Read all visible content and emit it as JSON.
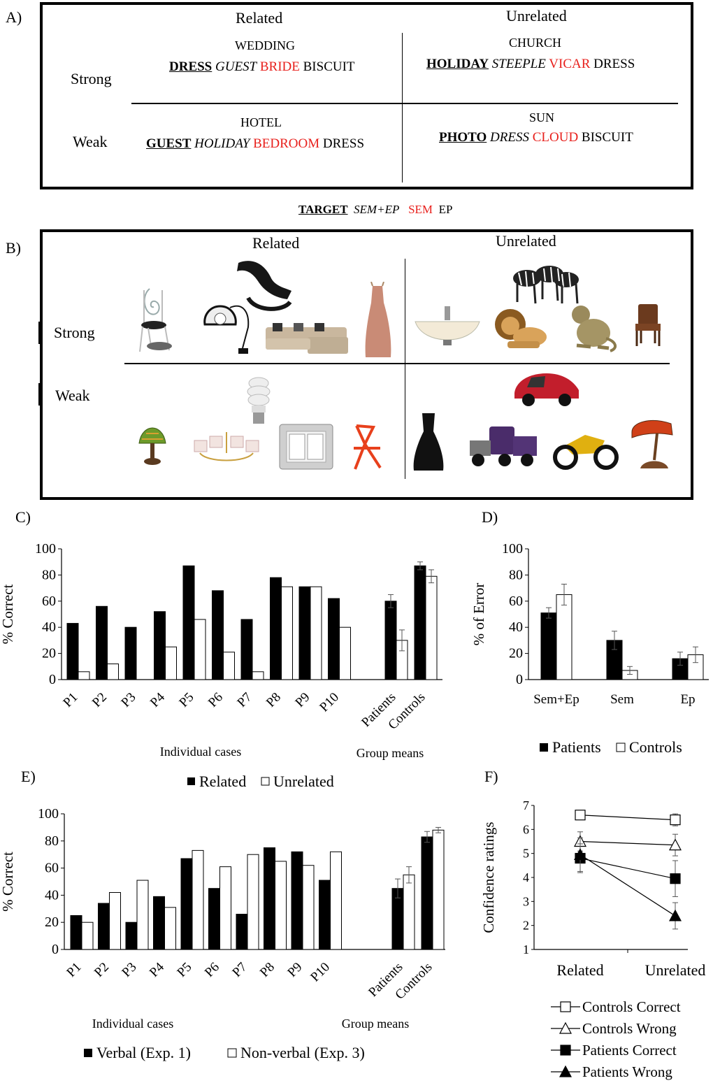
{
  "panel_a": {
    "letter": "A)",
    "col_related": "Related",
    "col_unrelated": "Unrelated",
    "row_strong": "Strong",
    "row_weak": "Weak",
    "cells": {
      "strong_related": {
        "cue": "WEDDING",
        "target": "DRESS",
        "semep": "GUEST",
        "sem": "BRIDE",
        "ep": "BISCUIT"
      },
      "strong_unrelated": {
        "cue": "CHURCH",
        "target": "HOLIDAY",
        "semep": "STEEPLE",
        "sem": "VICAR",
        "ep": "DRESS"
      },
      "weak_related": {
        "cue": "HOTEL",
        "target": "GUEST",
        "semep": "HOLIDAY",
        "sem": "BEDROOM",
        "ep": "DRESS"
      },
      "weak_unrelated": {
        "cue": "SUN",
        "target": "PHOTO",
        "semep": "DRESS",
        "sem": "CLOUD",
        "ep": "BISCUIT"
      }
    },
    "legend": {
      "target": "TARGET",
      "semep": "SEM+EP",
      "sem": "SEM",
      "ep": "EP"
    },
    "colors": {
      "sem": "#e8201c"
    }
  },
  "panel_b": {
    "letter": "B)",
    "col_related": "Related",
    "col_unrelated": "Unrelated",
    "row_strong": "Strong",
    "row_weak": "Weak",
    "images": {
      "strong_related": [
        "chair-image",
        "desk-lamp-image",
        "lounge-chair-image",
        "sofa-image",
        "dress-image"
      ],
      "strong_unrelated": [
        "ceiling-lamp-image",
        "lion-image",
        "zebras-image",
        "monkey-image",
        "wooden-chair-image"
      ],
      "weak_related": [
        "tiffany-lamp-image",
        "chandelier-image",
        "light-bulb-image",
        "light-switch-image",
        "folding-chair-image"
      ],
      "weak_unrelated": [
        "black-dress-image",
        "truck-image",
        "car-image",
        "motorcycle-image",
        "banker-lamp-image"
      ]
    }
  },
  "chart_data": [
    {
      "panel": "C)",
      "type": "bar",
      "ylabel": "% Correct",
      "ylim": [
        0,
        100
      ],
      "yticks": [
        0,
        20,
        40,
        60,
        80,
        100
      ],
      "categories": [
        "P1",
        "P2",
        "P3",
        "P4",
        "P5",
        "P6",
        "P7",
        "P8",
        "P9",
        "P10",
        "Patients",
        "Controls"
      ],
      "series": [
        {
          "name": "Related",
          "color": "#000000",
          "values": [
            43,
            56,
            40,
            52,
            87,
            68,
            46,
            78,
            71,
            62,
            60,
            87
          ],
          "err": [
            null,
            null,
            null,
            null,
            null,
            null,
            null,
            null,
            null,
            null,
            5,
            3
          ]
        },
        {
          "name": "Unrelated",
          "color": "#ffffff",
          "values": [
            6,
            12,
            0,
            25,
            46,
            21,
            6,
            71,
            71,
            40,
            30,
            79
          ],
          "err": [
            null,
            null,
            null,
            null,
            null,
            null,
            null,
            null,
            null,
            null,
            8,
            5
          ]
        }
      ],
      "group_labels": [
        "Individual cases",
        "Group means"
      ],
      "legend_position": "bottom"
    },
    {
      "panel": "D)",
      "type": "bar",
      "ylabel": "% of Error",
      "ylim": [
        0,
        100
      ],
      "yticks": [
        0,
        20,
        40,
        60,
        80,
        100
      ],
      "categories": [
        "Sem+Ep",
        "Sem",
        "Ep"
      ],
      "series": [
        {
          "name": "Patients",
          "color": "#000000",
          "values": [
            51,
            30,
            16
          ],
          "err": [
            4,
            7,
            5
          ]
        },
        {
          "name": "Controls",
          "color": "#ffffff",
          "values": [
            65,
            7,
            19
          ],
          "err": [
            8,
            3,
            6
          ]
        }
      ],
      "legend_position": "bottom"
    },
    {
      "panel": "E)",
      "type": "bar",
      "ylabel": "% Correct",
      "ylim": [
        0,
        100
      ],
      "yticks": [
        0,
        20,
        40,
        60,
        80,
        100
      ],
      "categories": [
        "P1",
        "P2",
        "P3",
        "P4",
        "P5",
        "P6",
        "P7",
        "P8",
        "P9",
        "P10",
        "Patients",
        "Controls"
      ],
      "series": [
        {
          "name": "Verbal (Exp. 1)",
          "color": "#000000",
          "values": [
            25,
            34,
            20,
            39,
            67,
            45,
            26,
            75,
            72,
            51,
            45,
            83
          ],
          "err": [
            null,
            null,
            null,
            null,
            null,
            null,
            null,
            null,
            null,
            null,
            7,
            4
          ]
        },
        {
          "name": "Non-verbal (Exp. 3)",
          "color": "#ffffff",
          "values": [
            20,
            42,
            51,
            31,
            73,
            61,
            70,
            65,
            62,
            72,
            55,
            88
          ],
          "err": [
            null,
            null,
            null,
            null,
            null,
            null,
            null,
            null,
            null,
            null,
            6,
            2
          ]
        }
      ],
      "group_labels": [
        "Individual cases",
        "Group means"
      ],
      "legend_position": "bottom"
    },
    {
      "panel": "F)",
      "type": "line",
      "ylabel": "Confidence ratings",
      "ylim": [
        1,
        7
      ],
      "yticks": [
        1,
        2,
        3,
        4,
        5,
        6,
        7
      ],
      "categories": [
        "Related",
        "Unrelated"
      ],
      "series": [
        {
          "name": "Controls Correct",
          "marker": "square-open",
          "values": [
            6.6,
            6.4
          ],
          "err": [
            0.1,
            0.25
          ]
        },
        {
          "name": "Controls Wrong",
          "marker": "triangle-open",
          "values": [
            5.5,
            5.35
          ],
          "err": [
            0.4,
            0.45
          ]
        },
        {
          "name": "Patients Correct",
          "marker": "square-filled",
          "values": [
            4.8,
            3.95
          ],
          "err": [
            0.6,
            0.75
          ]
        },
        {
          "name": "Patients Wrong",
          "marker": "triangle-filled",
          "values": [
            4.95,
            2.4
          ],
          "err": [
            0.7,
            0.55
          ]
        }
      ],
      "legend_position": "bottom"
    }
  ],
  "legends": {
    "c": [
      "Related",
      "Unrelated"
    ],
    "d": [
      "Patients",
      "Controls"
    ],
    "e": [
      "Verbal (Exp. 1)",
      "Non-verbal (Exp. 3)"
    ],
    "f": [
      "Controls Correct",
      "Controls Wrong",
      "Patients Correct",
      "Patients Wrong"
    ]
  }
}
